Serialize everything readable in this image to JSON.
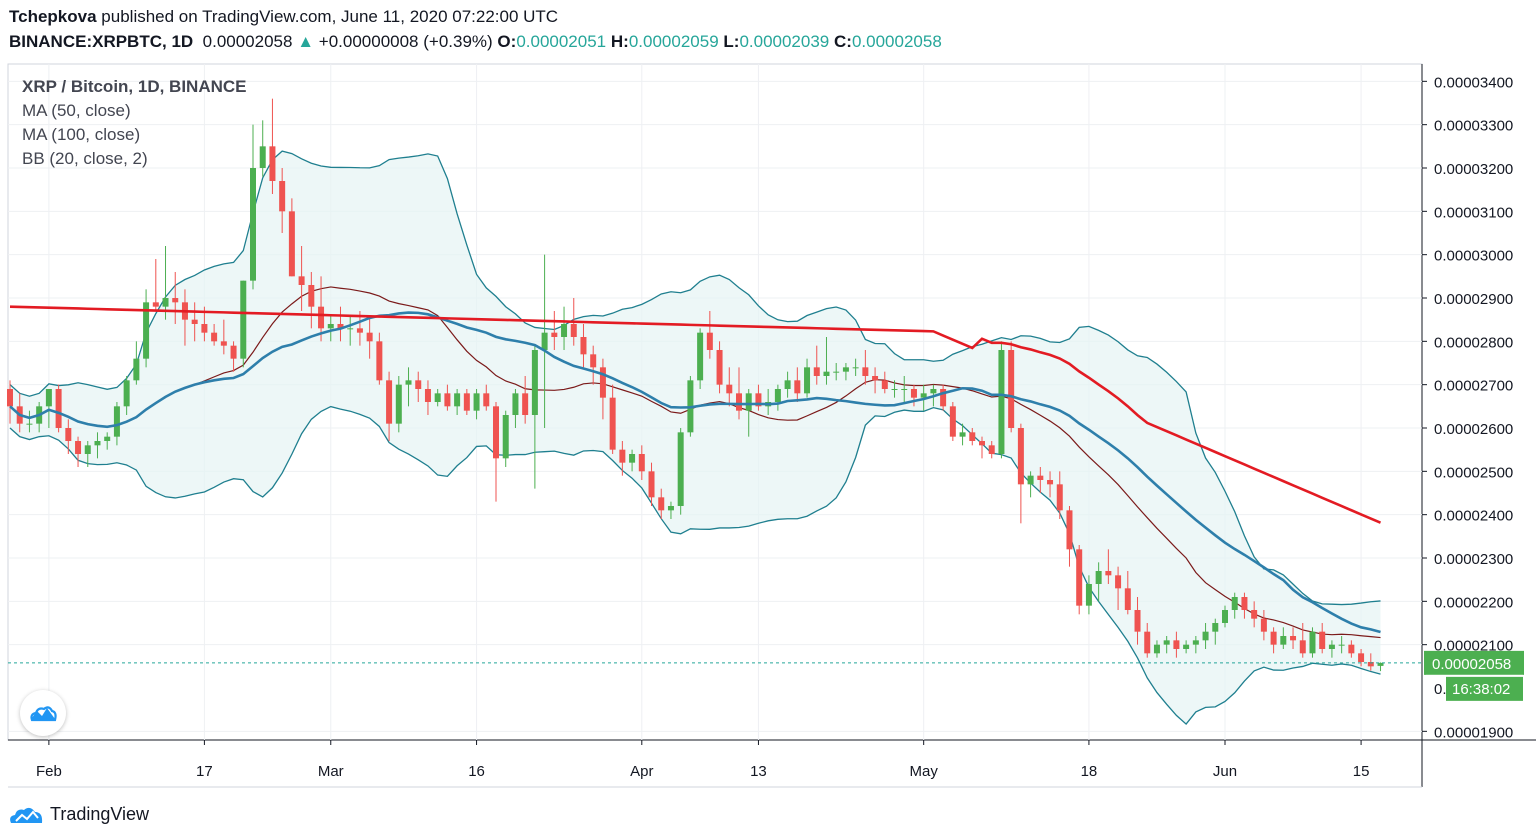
{
  "header": {
    "author": "Tchepkova",
    "published": "published on TradingView.com, June 11, 2020 07:22:00 UTC",
    "symbol": "BINANCE:XRPBTC, 1D",
    "last": "0.00002058",
    "change_arrow": "▲",
    "change": "+0.00000008 (+0.39%)",
    "o_label": "O:",
    "o": "0.00002051",
    "h_label": "H:",
    "h": "0.00002059",
    "l_label": "L:",
    "l": "0.00002039",
    "c_label": "C:",
    "c": "0.00002058"
  },
  "legend": {
    "title": "XRP / Bitcoin, 1D, BINANCE",
    "ma50": "MA (50, close)",
    "ma100": "MA (100, close)",
    "bb": "BB (20, close, 2)"
  },
  "price_label": "0.00002058",
  "countdown_label": "16:38:02",
  "countdown_prefix": "0.",
  "footer": {
    "brand": "TradingView"
  },
  "colors": {
    "up": "#26a69a",
    "up_fill": "#4caf50",
    "down": "#ef5350",
    "ma50": "#2e7fab",
    "ma100": "#e31b23",
    "bb_band": "#1f7f8f",
    "bb_basis": "#7b1a1a",
    "bb_fill": "#e6f4f4"
  },
  "chart_data": {
    "type": "candlestick",
    "y_ticks": [
      "0.00003400",
      "0.00003300",
      "0.00003200",
      "0.00003100",
      "0.00003000",
      "0.00002900",
      "0.00002800",
      "0.00002700",
      "0.00002600",
      "0.00002500",
      "0.00002400",
      "0.00002300",
      "0.00002200",
      "0.00002100",
      "0.00001900"
    ],
    "y_tick_values": [
      3400,
      3300,
      3200,
      3100,
      3000,
      2900,
      2800,
      2700,
      2600,
      2500,
      2400,
      2300,
      2200,
      2100,
      1900
    ],
    "x_ticks": [
      "Feb",
      "17",
      "Mar",
      "16",
      "Apr",
      "13",
      "May",
      "18",
      "Jun",
      "15"
    ],
    "x_tick_days": [
      4,
      20,
      33,
      48,
      65,
      77,
      94,
      111,
      125,
      139
    ],
    "y_unit": "satoshi (x1e-8 BTC)",
    "ylim": [
      1880,
      3440
    ],
    "start_date": "2020-01-19",
    "candles": [
      [
        2690,
        2710,
        2610,
        2650
      ],
      [
        2650,
        2680,
        2590,
        2610
      ],
      [
        2610,
        2640,
        2590,
        2610
      ],
      [
        2610,
        2660,
        2590,
        2650
      ],
      [
        2650,
        2690,
        2600,
        2690
      ],
      [
        2690,
        2700,
        2590,
        2600
      ],
      [
        2600,
        2620,
        2540,
        2570
      ],
      [
        2570,
        2580,
        2510,
        2540
      ],
      [
        2540,
        2570,
        2510,
        2560
      ],
      [
        2560,
        2590,
        2530,
        2570
      ],
      [
        2570,
        2590,
        2550,
        2580
      ],
      [
        2580,
        2660,
        2560,
        2650
      ],
      [
        2650,
        2720,
        2630,
        2710
      ],
      [
        2710,
        2800,
        2700,
        2760
      ],
      [
        2760,
        2920,
        2740,
        2890
      ],
      [
        2890,
        2990,
        2870,
        2880
      ],
      [
        2880,
        3020,
        2850,
        2900
      ],
      [
        2900,
        2960,
        2840,
        2890
      ],
      [
        2890,
        2920,
        2790,
        2850
      ],
      [
        2850,
        2890,
        2800,
        2840
      ],
      [
        2840,
        2880,
        2800,
        2820
      ],
      [
        2820,
        2840,
        2790,
        2800
      ],
      [
        2800,
        2850,
        2770,
        2790
      ],
      [
        2790,
        2800,
        2730,
        2760
      ],
      [
        2760,
        2940,
        2740,
        2940
      ],
      [
        2940,
        3300,
        2920,
        3200
      ],
      [
        3200,
        3310,
        3180,
        3250
      ],
      [
        3250,
        3360,
        3140,
        3170
      ],
      [
        3170,
        3200,
        3050,
        3100
      ],
      [
        3100,
        3130,
        2950,
        2950
      ],
      [
        2950,
        3020,
        2870,
        2930
      ],
      [
        2930,
        2960,
        2830,
        2880
      ],
      [
        2880,
        2950,
        2800,
        2830
      ],
      [
        2830,
        2860,
        2800,
        2840
      ],
      [
        2840,
        2880,
        2800,
        2830
      ],
      [
        2830,
        2860,
        2790,
        2830
      ],
      [
        2830,
        2870,
        2790,
        2820
      ],
      [
        2820,
        2860,
        2760,
        2800
      ],
      [
        2800,
        2820,
        2700,
        2710
      ],
      [
        2710,
        2730,
        2570,
        2610
      ],
      [
        2610,
        2720,
        2590,
        2700
      ],
      [
        2700,
        2740,
        2650,
        2710
      ],
      [
        2710,
        2730,
        2660,
        2690
      ],
      [
        2690,
        2710,
        2630,
        2660
      ],
      [
        2660,
        2690,
        2650,
        2680
      ],
      [
        2680,
        2700,
        2640,
        2650
      ],
      [
        2650,
        2690,
        2630,
        2680
      ],
      [
        2680,
        2690,
        2630,
        2640
      ],
      [
        2640,
        2690,
        2620,
        2680
      ],
      [
        2680,
        2700,
        2640,
        2650
      ],
      [
        2650,
        2660,
        2430,
        2530
      ],
      [
        2530,
        2640,
        2510,
        2630
      ],
      [
        2630,
        2690,
        2600,
        2680
      ],
      [
        2680,
        2720,
        2610,
        2630
      ],
      [
        2630,
        2790,
        2460,
        2780
      ],
      [
        2780,
        3000,
        2600,
        2820
      ],
      [
        2820,
        2870,
        2780,
        2810
      ],
      [
        2810,
        2880,
        2780,
        2840
      ],
      [
        2840,
        2900,
        2790,
        2810
      ],
      [
        2810,
        2840,
        2740,
        2770
      ],
      [
        2770,
        2790,
        2700,
        2740
      ],
      [
        2740,
        2760,
        2620,
        2670
      ],
      [
        2670,
        2700,
        2540,
        2550
      ],
      [
        2550,
        2570,
        2490,
        2520
      ],
      [
        2520,
        2550,
        2500,
        2540
      ],
      [
        2540,
        2560,
        2480,
        2500
      ],
      [
        2500,
        2520,
        2420,
        2440
      ],
      [
        2440,
        2460,
        2390,
        2410
      ],
      [
        2410,
        2430,
        2390,
        2420
      ],
      [
        2420,
        2600,
        2400,
        2590
      ],
      [
        2590,
        2720,
        2580,
        2710
      ],
      [
        2710,
        2830,
        2690,
        2820
      ],
      [
        2820,
        2870,
        2760,
        2780
      ],
      [
        2780,
        2800,
        2680,
        2700
      ],
      [
        2700,
        2740,
        2650,
        2680
      ],
      [
        2680,
        2740,
        2620,
        2640
      ],
      [
        2640,
        2690,
        2580,
        2680
      ],
      [
        2680,
        2700,
        2640,
        2650
      ],
      [
        2650,
        2690,
        2630,
        2660
      ],
      [
        2660,
        2700,
        2640,
        2690
      ],
      [
        2690,
        2730,
        2670,
        2710
      ],
      [
        2710,
        2740,
        2660,
        2680
      ],
      [
        2680,
        2760,
        2670,
        2740
      ],
      [
        2740,
        2790,
        2700,
        2720
      ],
      [
        2720,
        2810,
        2700,
        2730
      ],
      [
        2730,
        2750,
        2710,
        2730
      ],
      [
        2730,
        2750,
        2710,
        2740
      ],
      [
        2740,
        2760,
        2720,
        2740
      ],
      [
        2740,
        2780,
        2700,
        2720
      ],
      [
        2720,
        2740,
        2680,
        2710
      ],
      [
        2710,
        2730,
        2680,
        2690
      ],
      [
        2690,
        2710,
        2670,
        2690
      ],
      [
        2690,
        2720,
        2660,
        2690
      ],
      [
        2690,
        2700,
        2650,
        2670
      ],
      [
        2670,
        2700,
        2640,
        2680
      ],
      [
        2680,
        2700,
        2650,
        2690
      ],
      [
        2690,
        2700,
        2640,
        2650
      ],
      [
        2650,
        2660,
        2570,
        2580
      ],
      [
        2580,
        2610,
        2560,
        2590
      ],
      [
        2590,
        2600,
        2560,
        2570
      ],
      [
        2570,
        2580,
        2530,
        2560
      ],
      [
        2560,
        2570,
        2530,
        2540
      ],
      [
        2540,
        2800,
        2530,
        2780
      ],
      [
        2780,
        2800,
        2590,
        2600
      ],
      [
        2600,
        2610,
        2380,
        2470
      ],
      [
        2470,
        2500,
        2440,
        2490
      ],
      [
        2490,
        2510,
        2450,
        2480
      ],
      [
        2480,
        2500,
        2440,
        2470
      ],
      [
        2470,
        2500,
        2390,
        2410
      ],
      [
        2410,
        2420,
        2280,
        2320
      ],
      [
        2320,
        2330,
        2170,
        2190
      ],
      [
        2190,
        2260,
        2170,
        2240
      ],
      [
        2240,
        2290,
        2200,
        2270
      ],
      [
        2270,
        2320,
        2240,
        2260
      ],
      [
        2260,
        2280,
        2180,
        2230
      ],
      [
        2230,
        2270,
        2170,
        2180
      ],
      [
        2180,
        2210,
        2100,
        2130
      ],
      [
        2130,
        2150,
        2070,
        2080
      ],
      [
        2080,
        2110,
        2070,
        2100
      ],
      [
        2100,
        2120,
        2080,
        2110
      ],
      [
        2110,
        2130,
        2070,
        2090
      ],
      [
        2090,
        2110,
        2080,
        2100
      ],
      [
        2100,
        2120,
        2080,
        2110
      ],
      [
        2110,
        2150,
        2090,
        2130
      ],
      [
        2130,
        2160,
        2100,
        2150
      ],
      [
        2150,
        2190,
        2140,
        2180
      ],
      [
        2180,
        2220,
        2160,
        2210
      ],
      [
        2210,
        2220,
        2160,
        2180
      ],
      [
        2180,
        2200,
        2140,
        2160
      ],
      [
        2160,
        2180,
        2110,
        2130
      ],
      [
        2130,
        2140,
        2080,
        2100
      ],
      [
        2100,
        2140,
        2090,
        2120
      ],
      [
        2120,
        2140,
        2090,
        2110
      ],
      [
        2110,
        2150,
        2070,
        2080
      ],
      [
        2080,
        2140,
        2070,
        2130
      ],
      [
        2130,
        2150,
        2080,
        2090
      ],
      [
        2090,
        2110,
        2070,
        2100
      ],
      [
        2100,
        2120,
        2080,
        2100
      ],
      [
        2100,
        2110,
        2070,
        2080
      ],
      [
        2080,
        2090,
        2050,
        2060
      ],
      [
        2060,
        2080,
        2040,
        2050
      ],
      [
        2051,
        2059,
        2039,
        2058
      ]
    ]
  }
}
